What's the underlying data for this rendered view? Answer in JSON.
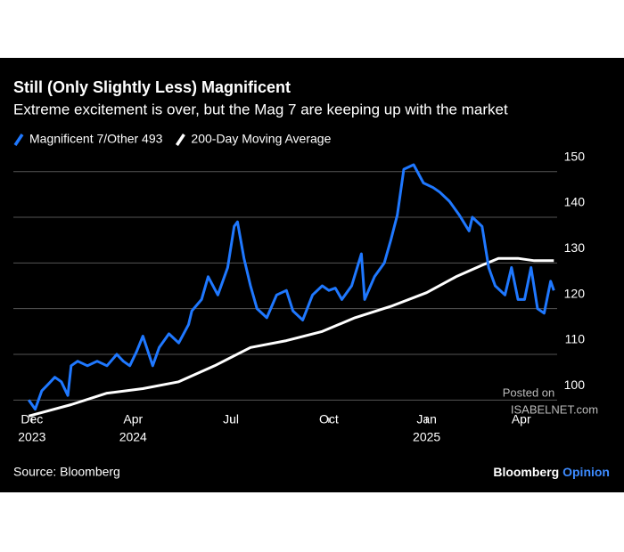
{
  "chart_data": {
    "type": "line",
    "title": "Still (Only Slightly Less) Magnificent",
    "subtitle": "Extreme excitement is over, but the Mag 7 are keeping up with the market",
    "source": "Source: Bloomberg",
    "brand": [
      "Bloomberg",
      "Opinion"
    ],
    "watermark": [
      "Posted on",
      "ISABELNET.com"
    ],
    "grid": true,
    "xlim": [
      -0.57,
      16.1
    ],
    "ylim": [
      95,
      151.5
    ],
    "yticks": [
      100,
      110,
      120,
      130,
      140,
      150
    ],
    "xticks": [
      {
        "value": 0,
        "label": [
          "Dec",
          "2023"
        ]
      },
      {
        "value": 3.1,
        "label": [
          "Apr",
          "2024"
        ]
      },
      {
        "value": 6.1,
        "label": [
          "Jul"
        ]
      },
      {
        "value": 9.1,
        "label": [
          "Oct"
        ]
      },
      {
        "value": 12.1,
        "label": [
          "Jan",
          "2025"
        ]
      },
      {
        "value": 15,
        "label": [
          "Apr"
        ]
      }
    ],
    "series": [
      {
        "name": "Magnificent 7/Other 493",
        "color": "#1f78ff",
        "x": [
          -0.1,
          0.1,
          0.3,
          0.5,
          0.7,
          0.9,
          1.1,
          1.2,
          1.4,
          1.7,
          2.0,
          2.3,
          2.6,
          2.8,
          3.0,
          3.2,
          3.4,
          3.7,
          3.9,
          4.2,
          4.5,
          4.8,
          4.9,
          5.2,
          5.4,
          5.7,
          6.0,
          6.2,
          6.3,
          6.5,
          6.7,
          6.9,
          7.2,
          7.5,
          7.8,
          8.0,
          8.3,
          8.6,
          8.9,
          9.1,
          9.3,
          9.5,
          9.8,
          10.1,
          10.2,
          10.5,
          10.8,
          11.0,
          11.2,
          11.4,
          11.7,
          12.0,
          12.3,
          12.5,
          12.8,
          13.1,
          13.4,
          13.5,
          13.8,
          14.0,
          14.2,
          14.5,
          14.7,
          14.9,
          15.1,
          15.3,
          15.5,
          15.7,
          15.9,
          16.0
        ],
        "values": [
          100,
          98,
          102,
          103.5,
          105,
          104,
          101,
          107.5,
          108.5,
          107.5,
          108.5,
          107.5,
          110,
          108.5,
          107.5,
          110.5,
          114,
          107.5,
          111.5,
          114.5,
          112.5,
          116.5,
          119.5,
          122,
          127,
          123,
          129,
          138,
          139,
          131,
          125,
          120,
          118,
          123,
          124,
          119.5,
          117.5,
          123,
          125,
          124,
          124.5,
          122,
          125,
          132,
          122,
          127,
          130,
          135,
          140.5,
          150.5,
          151.5,
          147.5,
          146.5,
          145.5,
          143.5,
          140.5,
          137,
          140,
          138,
          129,
          125,
          123,
          129,
          122,
          122,
          129,
          120,
          119,
          126,
          124
        ]
      },
      {
        "name": "200-Day Moving Average",
        "color": "#ffffff",
        "x": [
          -0.1,
          1.2,
          2.3,
          3.4,
          4.5,
          5.6,
          6.7,
          7.8,
          8.9,
          9.9,
          11.0,
          12.1,
          13.0,
          13.8,
          14.3,
          14.9,
          15.4,
          16.0
        ],
        "values": [
          96.5,
          99,
          101.5,
          102.5,
          104,
          107.5,
          111.5,
          113,
          115,
          118,
          120.5,
          123.5,
          127,
          129.5,
          131,
          131,
          130.5,
          130.5
        ]
      }
    ]
  }
}
